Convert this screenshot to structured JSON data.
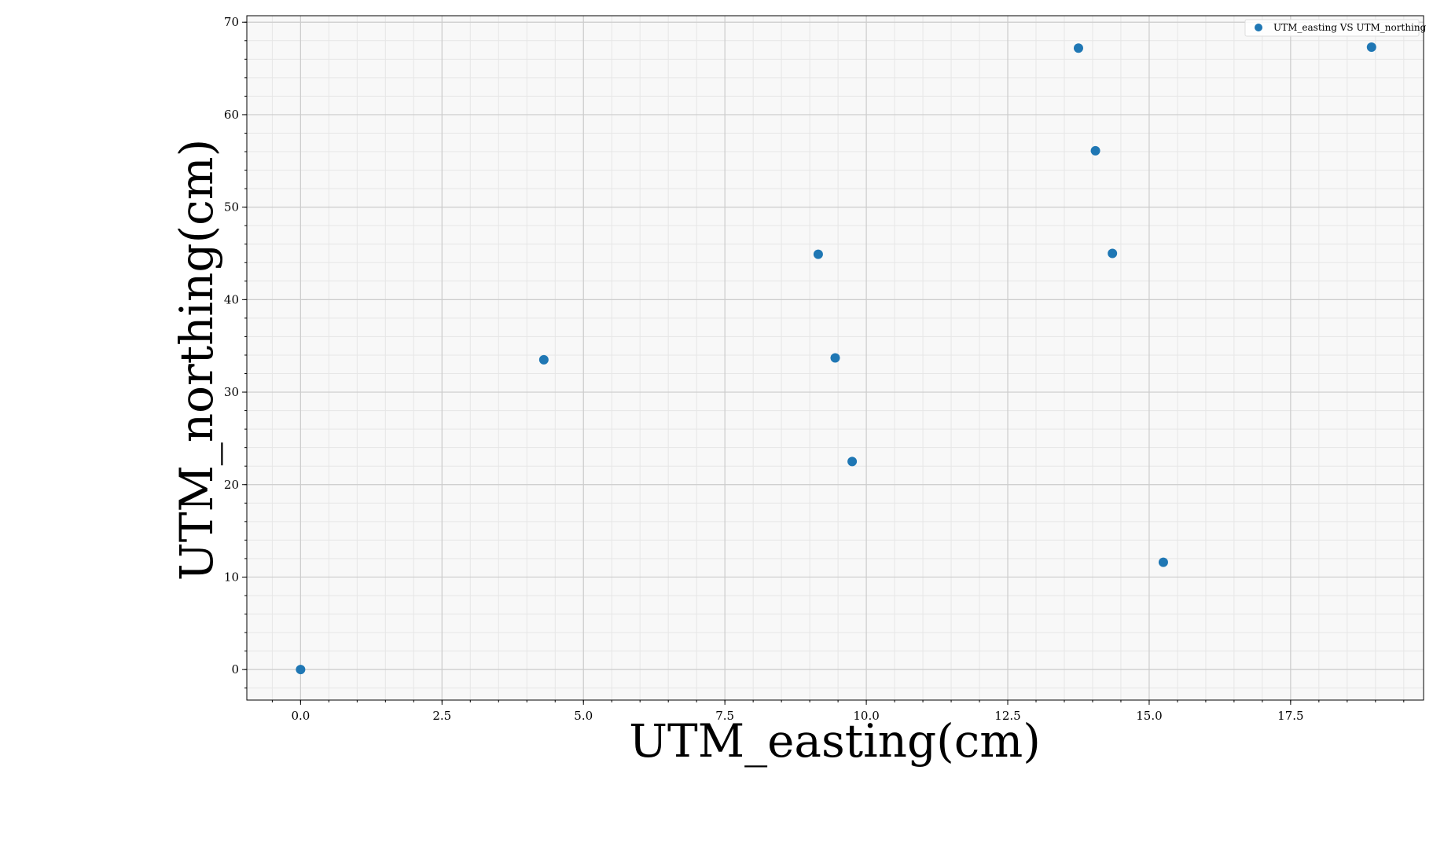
{
  "chart_data": {
    "type": "scatter",
    "title": "",
    "xlabel": "UTM_easting(cm)",
    "ylabel": "UTM_northing(cm)",
    "xlim": [
      -0.95,
      19.85
    ],
    "ylim": [
      -3.3,
      70.7
    ],
    "xticks": [
      0.0,
      2.5,
      5.0,
      7.5,
      10.0,
      12.5,
      15.0,
      17.5
    ],
    "xtick_labels": [
      "0.0",
      "2.5",
      "5.0",
      "7.5",
      "10.0",
      "12.5",
      "15.0",
      "17.5"
    ],
    "yticks": [
      0,
      10,
      20,
      30,
      40,
      50,
      60,
      70
    ],
    "ytick_labels": [
      "0",
      "10",
      "20",
      "30",
      "40",
      "50",
      "60",
      "70"
    ],
    "grid": true,
    "minor_grid": true,
    "legend_position": "top-right",
    "series": [
      {
        "name": "UTM_easting VS UTM_northing",
        "color": "#1f77b4",
        "points": [
          {
            "x": 0.0,
            "y": 0.0
          },
          {
            "x": 4.3,
            "y": 33.5
          },
          {
            "x": 9.15,
            "y": 44.9
          },
          {
            "x": 9.45,
            "y": 33.7
          },
          {
            "x": 9.75,
            "y": 22.5
          },
          {
            "x": 13.75,
            "y": 67.2
          },
          {
            "x": 14.05,
            "y": 56.1
          },
          {
            "x": 14.35,
            "y": 45.0
          },
          {
            "x": 15.25,
            "y": 11.6
          },
          {
            "x": 18.93,
            "y": 67.3
          }
        ]
      }
    ]
  }
}
